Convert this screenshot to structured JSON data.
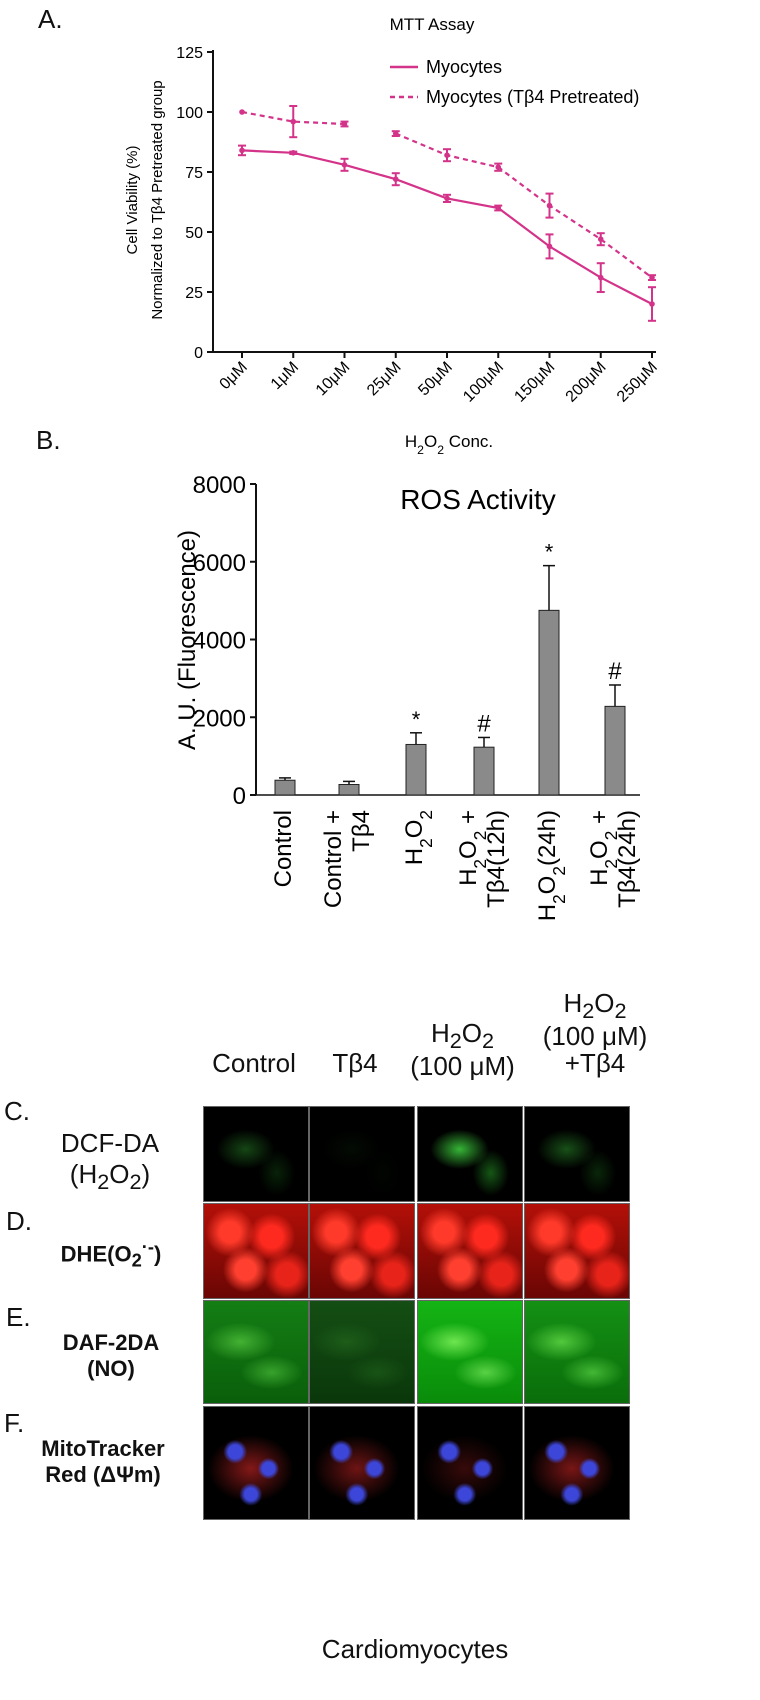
{
  "colors": {
    "line": "#d4338a",
    "bar": "#8a8a8a",
    "bar_stroke": "#222222"
  },
  "panel_letters": {
    "a": "A.",
    "b": "B.",
    "c": "C.",
    "d": "D.",
    "e": "E.",
    "f": "F."
  },
  "chart_data": [
    {
      "type": "line",
      "title": "MTT Assay",
      "xlabel": "H₂O₂ Conc.",
      "ylabel_line1": "Cell Viability (%)",
      "ylabel_line2": "Normalized to Tβ4 Pretreated group",
      "ylim": [
        0,
        125
      ],
      "yticks": [
        0,
        25,
        50,
        75,
        100,
        125
      ],
      "categories": [
        "0μM",
        "1μM",
        "10μM",
        "25μM",
        "50μM",
        "100μM",
        "150μM",
        "200μM",
        "250μM"
      ],
      "legend_position": "top-right",
      "series": [
        {
          "name": "Myocytes",
          "style": "solid",
          "values": [
            84,
            83,
            78,
            72,
            64,
            60,
            44,
            31,
            20
          ],
          "errors": [
            2,
            0.5,
            2.5,
            2.5,
            1.5,
            1,
            5,
            6,
            7
          ]
        },
        {
          "name": "Myocytes (Tβ4 Pretreated)",
          "style": "dashed",
          "values": [
            100,
            96,
            95,
            91,
            82,
            77,
            61,
            47,
            31
          ],
          "errors": [
            0,
            6.5,
            1,
            1,
            2.5,
            1.5,
            5,
            2.5,
            1
          ]
        }
      ]
    },
    {
      "type": "bar",
      "title": "ROS Activity",
      "ylabel": "A. U. (Fluorescence)",
      "ylim": [
        0,
        8000
      ],
      "yticks": [
        0,
        2000,
        4000,
        6000,
        8000
      ],
      "categories": [
        "Control",
        "Control + Tβ4",
        "H₂O₂",
        "H₂O₂ + Tβ4(12h)",
        "H₂O₂(24h)",
        "H₂O₂ + Tβ4(24h)"
      ],
      "values": [
        380,
        270,
        1300,
        1230,
        4750,
        2280
      ],
      "errors": [
        60,
        80,
        300,
        250,
        1150,
        550
      ],
      "annotations": [
        "",
        "",
        "*",
        "#",
        "*",
        "#"
      ]
    }
  ],
  "micro": {
    "columns": [
      "Control",
      "Tβ4",
      "H₂O₂ (100 μM)",
      "H₂O₂ (100 μM) +Tβ4"
    ],
    "rows": [
      {
        "label_line1": "DCF-DA",
        "label_line2": "(H₂O₂)",
        "stain": "green-sparse"
      },
      {
        "label_line1": "DHE(O₂·⁻)",
        "label_line2": "",
        "stain": "red-nuclear"
      },
      {
        "label_line1": "DAF-2DA",
        "label_line2": "(NO)",
        "stain": "green-diffuse"
      },
      {
        "label_line1": "MitoTracker",
        "label_line2": "Red (ΔΨm)",
        "stain": "red-mito-blue-nuclei"
      }
    ],
    "footer": "Cardiomyocytes"
  }
}
